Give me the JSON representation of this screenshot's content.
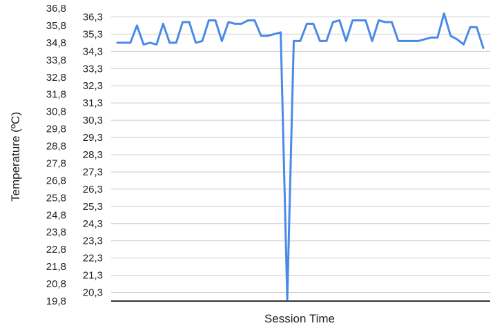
{
  "chart_data": {
    "type": "line",
    "title": "",
    "xlabel": "Session Time",
    "ylabel": "Temperature (ºC)",
    "grid": true,
    "legend": "none",
    "color": "#4a8ae6",
    "y_ticks_outer": [
      "36,8",
      "35,8",
      "34,8",
      "33,8",
      "32,8",
      "31,8",
      "30,8",
      "29,8",
      "28,8",
      "27,8",
      "26,8",
      "25,8",
      "24,8",
      "23,8",
      "22,8",
      "21,8",
      "20,8",
      "19,8"
    ],
    "y_ticks_inner": [
      "36,3",
      "35,3",
      "34,3",
      "33,3",
      "32,3",
      "31,3",
      "30,3",
      "29,3",
      "28,3",
      "27,3",
      "26,3",
      "25,3",
      "24,3",
      "23,3",
      "22,3",
      "21,3",
      "20,3"
    ],
    "ylim": [
      19.8,
      36.8
    ],
    "series": [
      {
        "values": [
          34.8,
          34.8,
          34.8,
          35.8,
          34.7,
          34.8,
          34.7,
          35.9,
          34.8,
          34.8,
          36.0,
          36.0,
          34.8,
          34.9,
          36.1,
          36.1,
          34.9,
          36.0,
          35.9,
          35.9,
          36.1,
          36.1,
          35.2,
          35.2,
          35.3,
          35.4,
          19.9,
          34.9,
          34.9,
          35.9,
          35.9,
          34.9,
          34.9,
          36.0,
          36.1,
          34.9,
          36.1,
          36.1,
          36.1,
          34.9,
          36.1,
          36.0,
          36.0,
          34.9,
          34.9,
          34.9,
          34.9,
          35.0,
          35.1,
          35.1,
          36.5,
          35.2,
          35.0,
          34.7,
          35.7,
          35.7,
          34.5
        ]
      }
    ]
  }
}
